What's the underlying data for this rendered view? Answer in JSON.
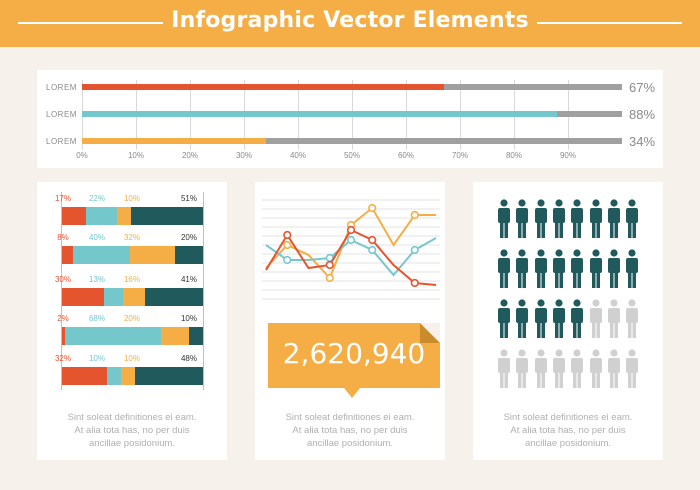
{
  "header": {
    "title": "Infographic Vector Elements"
  },
  "colors": {
    "orange": "#f5ae46",
    "red": "#e4552f",
    "teal": "#74c8cc",
    "dark": "#215a5c",
    "gray": "#a0a0a0",
    "lightgray": "#d0d0d0"
  },
  "progress": {
    "rows": [
      {
        "label": "LOREM",
        "value": 0.67,
        "pct_label": "67%",
        "color": "#e4552f"
      },
      {
        "label": "LOREM",
        "value": 0.88,
        "pct_label": "88%",
        "color": "#74c8cc"
      },
      {
        "label": "LOREM",
        "value": 0.34,
        "pct_label": "34%",
        "color": "#f5ae46"
      }
    ],
    "ticks": [
      "0%",
      "10%",
      "20%",
      "30%",
      "40%",
      "50%",
      "60%",
      "70%",
      "80%",
      "90%"
    ]
  },
  "stacked": {
    "rows": [
      {
        "values": [
          17,
          22,
          10,
          51
        ],
        "labels": [
          "17%",
          "22%",
          "10%",
          "51%"
        ]
      },
      {
        "values": [
          8,
          40,
          32,
          20
        ],
        "labels": [
          "8%",
          "40%",
          "32%",
          "20%"
        ]
      },
      {
        "values": [
          30,
          13,
          16,
          41
        ],
        "labels": [
          "30%",
          "13%",
          "16%",
          "41%"
        ]
      },
      {
        "values": [
          2,
          68,
          20,
          10
        ],
        "labels": [
          "2%",
          "68%",
          "20%",
          "10%"
        ]
      },
      {
        "values": [
          32,
          10,
          10,
          48
        ],
        "labels": [
          "32%",
          "10%",
          "10%",
          "48%"
        ]
      }
    ],
    "colors": [
      "#e4552f",
      "#74c8cc",
      "#f5ae46",
      "#215a5c"
    ],
    "label_colors": [
      "#e4552f",
      "#74c8cc",
      "#f5ae46",
      "#333333"
    ]
  },
  "line_chart": {
    "series": [
      {
        "color": "#f5ae46",
        "y": [
          0.32,
          0.55,
          0.45,
          0.22,
          0.75,
          0.92,
          0.55,
          0.85,
          0.85
        ]
      },
      {
        "color": "#74c8cc",
        "y": [
          0.55,
          0.4,
          0.4,
          0.42,
          0.6,
          0.5,
          0.25,
          0.5,
          0.62
        ]
      },
      {
        "color": "#e4552f",
        "y": [
          0.3,
          0.65,
          0.32,
          0.35,
          0.7,
          0.6,
          0.35,
          0.17,
          0.15
        ]
      }
    ]
  },
  "big_number": "2,620,940",
  "people": {
    "rows": 4,
    "cols": 8,
    "filled": 21,
    "color_filled": "#215a5c",
    "color_empty": "#d0d0d0"
  },
  "panels": {
    "left": {
      "desc": [
        "Sint soleat definitiones ei eam.",
        "At alia tota has, no per duis",
        "ancillae posidonium."
      ]
    },
    "middle": {
      "desc": [
        "Sint soleat definitiones ei eam.",
        "At alia tota has, no per duis",
        "ancillae posidonium."
      ]
    },
    "right": {
      "desc": [
        "Sint soleat definitiones ei eam.",
        "At alia tota has, no per duis",
        "ancillae posidonium."
      ]
    }
  }
}
